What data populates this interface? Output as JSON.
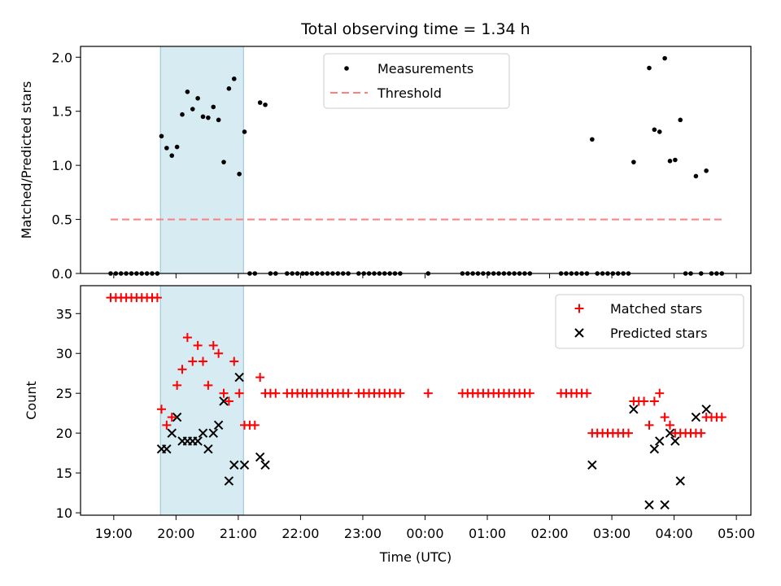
{
  "chart_data": [
    {
      "type": "scatter",
      "title": "Total observing time = 1.34 h",
      "xlabel": "",
      "ylabel": "Matched/Predicted stars",
      "ylim": [
        0,
        2.1
      ],
      "yticks": [
        0.0,
        0.5,
        1.0,
        1.5,
        2.0
      ],
      "ytick_labels": [
        "0.0",
        "0.5",
        "1.0",
        "1.5",
        "2.0"
      ],
      "shaded_span": [
        "19:45",
        "21:05"
      ],
      "legend_position": "top-center",
      "series": [
        {
          "name": "Measurements",
          "marker": "dot",
          "color": "#000000",
          "points": [
            [
              "18:57",
              0
            ],
            [
              "19:02",
              0
            ],
            [
              "19:07",
              0
            ],
            [
              "19:12",
              0
            ],
            [
              "19:17",
              0
            ],
            [
              "19:22",
              0
            ],
            [
              "19:27",
              0
            ],
            [
              "19:32",
              0
            ],
            [
              "19:37",
              0
            ],
            [
              "19:42",
              0
            ],
            [
              "19:46",
              1.27
            ],
            [
              "19:51",
              1.16
            ],
            [
              "19:56",
              1.09
            ],
            [
              "20:01",
              1.17
            ],
            [
              "20:06",
              1.47
            ],
            [
              "20:11",
              1.68
            ],
            [
              "20:16",
              1.52
            ],
            [
              "20:21",
              1.62
            ],
            [
              "20:26",
              1.45
            ],
            [
              "20:31",
              1.44
            ],
            [
              "20:36",
              1.54
            ],
            [
              "20:41",
              1.42
            ],
            [
              "20:46",
              1.03
            ],
            [
              "20:51",
              1.71
            ],
            [
              "20:56",
              1.8
            ],
            [
              "21:01",
              0.92
            ],
            [
              "21:06",
              1.31
            ],
            [
              "21:11",
              0
            ],
            [
              "21:16",
              0
            ],
            [
              "21:21",
              1.58
            ],
            [
              "21:26",
              1.56
            ],
            [
              "21:31",
              0
            ],
            [
              "21:36",
              0
            ],
            [
              "21:47",
              0
            ],
            [
              "21:52",
              0
            ],
            [
              "21:57",
              0
            ],
            [
              "22:02",
              0
            ],
            [
              "22:06",
              0
            ],
            [
              "22:11",
              0
            ],
            [
              "22:16",
              0
            ],
            [
              "22:21",
              0
            ],
            [
              "22:26",
              0
            ],
            [
              "22:31",
              0
            ],
            [
              "22:36",
              0
            ],
            [
              "22:41",
              0
            ],
            [
              "22:46",
              0
            ],
            [
              "22:56",
              0
            ],
            [
              "23:01",
              0
            ],
            [
              "23:06",
              0
            ],
            [
              "23:11",
              0
            ],
            [
              "23:16",
              0
            ],
            [
              "23:21",
              0
            ],
            [
              "23:26",
              0
            ],
            [
              "23:31",
              0
            ],
            [
              "23:36",
              0
            ],
            [
              "00:03",
              0
            ],
            [
              "00:36",
              0
            ],
            [
              "00:41",
              0
            ],
            [
              "00:46",
              0
            ],
            [
              "00:51",
              0
            ],
            [
              "00:56",
              0
            ],
            [
              "01:01",
              0
            ],
            [
              "01:06",
              0
            ],
            [
              "01:11",
              0
            ],
            [
              "01:16",
              0
            ],
            [
              "01:21",
              0
            ],
            [
              "01:26",
              0
            ],
            [
              "01:31",
              0
            ],
            [
              "01:36",
              0
            ],
            [
              "01:41",
              0
            ],
            [
              "02:11",
              0
            ],
            [
              "02:16",
              0
            ],
            [
              "02:21",
              0
            ],
            [
              "02:26",
              0
            ],
            [
              "02:31",
              0
            ],
            [
              "02:36",
              0
            ],
            [
              "02:41",
              1.24
            ],
            [
              "02:46",
              0
            ],
            [
              "02:51",
              0
            ],
            [
              "02:56",
              0
            ],
            [
              "03:01",
              0
            ],
            [
              "03:06",
              0
            ],
            [
              "03:11",
              0
            ],
            [
              "03:16",
              0
            ],
            [
              "03:21",
              1.03
            ],
            [
              "03:36",
              1.9
            ],
            [
              "03:41",
              1.33
            ],
            [
              "03:46",
              1.31
            ],
            [
              "03:51",
              1.99
            ],
            [
              "03:56",
              1.04
            ],
            [
              "04:01",
              1.05
            ],
            [
              "04:06",
              1.42
            ],
            [
              "04:11",
              0
            ],
            [
              "04:16",
              0
            ],
            [
              "04:21",
              0.9
            ],
            [
              "04:26",
              0
            ],
            [
              "04:31",
              0.95
            ],
            [
              "04:36",
              0
            ],
            [
              "04:41",
              0
            ],
            [
              "04:46",
              0
            ]
          ]
        },
        {
          "name": "Threshold",
          "marker": "dashed-line",
          "color": "#ff7f7f",
          "x": [
            "18:57",
            "04:46"
          ],
          "value": 0.5
        }
      ]
    },
    {
      "type": "scatter",
      "title": "",
      "xlabel": "Time (UTC)",
      "ylabel": "Count",
      "ylim": [
        9.7,
        38.5
      ],
      "yticks": [
        10,
        15,
        20,
        25,
        30,
        35
      ],
      "ytick_labels": [
        "10",
        "15",
        "20",
        "25",
        "30",
        "35"
      ],
      "xticks": [
        "19:00",
        "20:00",
        "21:00",
        "22:00",
        "23:00",
        "00:00",
        "01:00",
        "02:00",
        "03:00",
        "04:00",
        "05:00"
      ],
      "xlim": [
        "18:28",
        "05:14"
      ],
      "shaded_span": [
        "19:45",
        "21:05"
      ],
      "legend_position": "top-right",
      "series": [
        {
          "name": "Matched stars",
          "marker": "plus",
          "color": "#ff0000",
          "points": [
            [
              "18:57",
              37
            ],
            [
              "19:02",
              37
            ],
            [
              "19:07",
              37
            ],
            [
              "19:12",
              37
            ],
            [
              "19:17",
              37
            ],
            [
              "19:22",
              37
            ],
            [
              "19:27",
              37
            ],
            [
              "19:32",
              37
            ],
            [
              "19:37",
              37
            ],
            [
              "19:42",
              37
            ],
            [
              "19:46",
              23
            ],
            [
              "19:51",
              21
            ],
            [
              "19:56",
              22
            ],
            [
              "20:01",
              26
            ],
            [
              "20:06",
              28
            ],
            [
              "20:11",
              32
            ],
            [
              "20:16",
              29
            ],
            [
              "20:21",
              31
            ],
            [
              "20:26",
              29
            ],
            [
              "20:31",
              26
            ],
            [
              "20:36",
              31
            ],
            [
              "20:41",
              30
            ],
            [
              "20:46",
              25
            ],
            [
              "20:51",
              24
            ],
            [
              "20:56",
              29
            ],
            [
              "21:01",
              25
            ],
            [
              "21:06",
              21
            ],
            [
              "21:11",
              21
            ],
            [
              "21:16",
              21
            ],
            [
              "21:21",
              27
            ],
            [
              "21:26",
              25
            ],
            [
              "21:31",
              25
            ],
            [
              "21:36",
              25
            ],
            [
              "21:47",
              25
            ],
            [
              "21:52",
              25
            ],
            [
              "21:57",
              25
            ],
            [
              "22:02",
              25
            ],
            [
              "22:06",
              25
            ],
            [
              "22:11",
              25
            ],
            [
              "22:16",
              25
            ],
            [
              "22:21",
              25
            ],
            [
              "22:26",
              25
            ],
            [
              "22:31",
              25
            ],
            [
              "22:36",
              25
            ],
            [
              "22:41",
              25
            ],
            [
              "22:46",
              25
            ],
            [
              "22:56",
              25
            ],
            [
              "23:01",
              25
            ],
            [
              "23:06",
              25
            ],
            [
              "23:11",
              25
            ],
            [
              "23:16",
              25
            ],
            [
              "23:21",
              25
            ],
            [
              "23:26",
              25
            ],
            [
              "23:31",
              25
            ],
            [
              "23:36",
              25
            ],
            [
              "00:03",
              25
            ],
            [
              "00:36",
              25
            ],
            [
              "00:41",
              25
            ],
            [
              "00:46",
              25
            ],
            [
              "00:51",
              25
            ],
            [
              "00:56",
              25
            ],
            [
              "01:01",
              25
            ],
            [
              "01:06",
              25
            ],
            [
              "01:11",
              25
            ],
            [
              "01:16",
              25
            ],
            [
              "01:21",
              25
            ],
            [
              "01:26",
              25
            ],
            [
              "01:31",
              25
            ],
            [
              "01:36",
              25
            ],
            [
              "01:41",
              25
            ],
            [
              "02:11",
              25
            ],
            [
              "02:16",
              25
            ],
            [
              "02:21",
              25
            ],
            [
              "02:26",
              25
            ],
            [
              "02:31",
              25
            ],
            [
              "02:36",
              25
            ],
            [
              "02:41",
              20
            ],
            [
              "02:46",
              20
            ],
            [
              "02:51",
              20
            ],
            [
              "02:56",
              20
            ],
            [
              "03:01",
              20
            ],
            [
              "03:06",
              20
            ],
            [
              "03:11",
              20
            ],
            [
              "03:16",
              20
            ],
            [
              "03:21",
              24
            ],
            [
              "03:26",
              24
            ],
            [
              "03:31",
              24
            ],
            [
              "03:36",
              21
            ],
            [
              "03:41",
              24
            ],
            [
              "03:46",
              25
            ],
            [
              "03:51",
              22
            ],
            [
              "03:56",
              21
            ],
            [
              "04:01",
              20
            ],
            [
              "04:06",
              20
            ],
            [
              "04:11",
              20
            ],
            [
              "04:16",
              20
            ],
            [
              "04:21",
              20
            ],
            [
              "04:26",
              20
            ],
            [
              "04:31",
              22
            ],
            [
              "04:36",
              22
            ],
            [
              "04:41",
              22
            ],
            [
              "04:46",
              22
            ]
          ]
        },
        {
          "name": "Predicted stars",
          "marker": "x",
          "color": "#000000",
          "points": [
            [
              "19:46",
              18
            ],
            [
              "19:51",
              18
            ],
            [
              "19:56",
              20
            ],
            [
              "20:01",
              22
            ],
            [
              "20:06",
              19
            ],
            [
              "20:11",
              19
            ],
            [
              "20:16",
              19
            ],
            [
              "20:21",
              19
            ],
            [
              "20:26",
              20
            ],
            [
              "20:31",
              18
            ],
            [
              "20:36",
              20
            ],
            [
              "20:41",
              21
            ],
            [
              "20:46",
              24
            ],
            [
              "20:51",
              14
            ],
            [
              "20:56",
              16
            ],
            [
              "21:01",
              27
            ],
            [
              "21:06",
              16
            ],
            [
              "21:21",
              17
            ],
            [
              "21:26",
              16
            ],
            [
              "02:41",
              16
            ],
            [
              "03:21",
              23
            ],
            [
              "03:36",
              11
            ],
            [
              "03:41",
              18
            ],
            [
              "03:46",
              19
            ],
            [
              "03:51",
              11
            ],
            [
              "03:56",
              20
            ],
            [
              "04:01",
              19
            ],
            [
              "04:06",
              14
            ],
            [
              "04:21",
              22
            ],
            [
              "04:31",
              23
            ]
          ]
        }
      ]
    }
  ]
}
